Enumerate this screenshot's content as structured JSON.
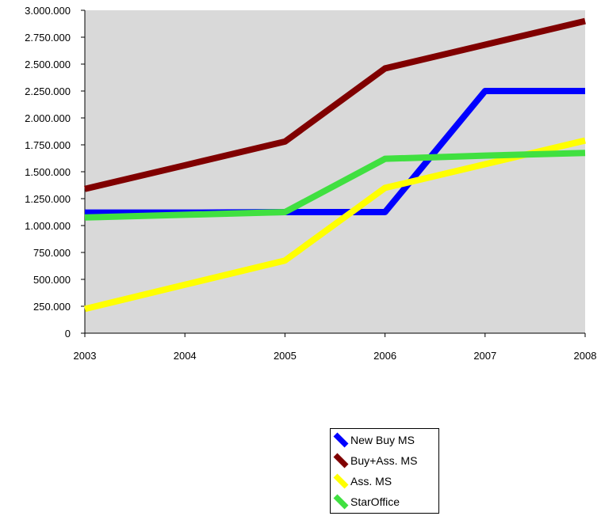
{
  "chart_data": {
    "type": "line",
    "title": "",
    "xlabel": "",
    "ylabel": "",
    "categories": [
      "2003",
      "2004",
      "2005",
      "2006",
      "2007",
      "2008"
    ],
    "ylim": [
      0,
      3000000
    ],
    "y_ticks": [
      {
        "value": 0,
        "label": "0"
      },
      {
        "value": 250000,
        "label": "250.000"
      },
      {
        "value": 500000,
        "label": "500.000"
      },
      {
        "value": 750000,
        "label": "750.000"
      },
      {
        "value": 1000000,
        "label": "1.000.000"
      },
      {
        "value": 1250000,
        "label": "1.250.000"
      },
      {
        "value": 1500000,
        "label": "1.500.000"
      },
      {
        "value": 1750000,
        "label": "1.750.000"
      },
      {
        "value": 2000000,
        "label": "2.000.000"
      },
      {
        "value": 2250000,
        "label": "2.250.000"
      },
      {
        "value": 2500000,
        "label": "2.500.000"
      },
      {
        "value": 2750000,
        "label": "2.750.000"
      },
      {
        "value": 3000000,
        "label": "3.000.000"
      }
    ],
    "grid": false,
    "plot_background": "#d9d9d9",
    "legend_position": "bottom",
    "series": [
      {
        "name": "New Buy MS",
        "color": "#0000ff",
        "values": [
          1120000,
          1120000,
          1125000,
          1125000,
          2250000,
          2250000
        ]
      },
      {
        "name": "Buy+Ass. MS",
        "color": "#800000",
        "values": [
          1340000,
          1560000,
          1780000,
          2460000,
          2680000,
          2900000
        ]
      },
      {
        "name": "Ass. MS",
        "color": "#ffff00",
        "values": [
          225000,
          450000,
          675000,
          1350000,
          1570000,
          1790000
        ]
      },
      {
        "name": "StarOffice",
        "color": "#40e040",
        "values": [
          1075000,
          1100000,
          1125000,
          1620000,
          1650000,
          1675000
        ]
      }
    ]
  }
}
